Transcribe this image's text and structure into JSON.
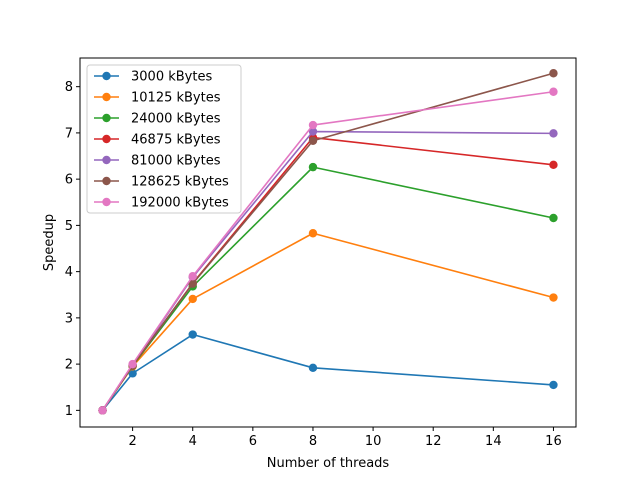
{
  "chart_data": {
    "type": "line",
    "xlabel": "Number of threads",
    "ylabel": "Speedup",
    "xlim": [
      0.25,
      16.75
    ],
    "ylim": [
      0.64,
      8.62
    ],
    "xticks": [
      2,
      4,
      6,
      8,
      10,
      12,
      14,
      16
    ],
    "yticks": [
      1,
      2,
      3,
      4,
      5,
      6,
      7,
      8
    ],
    "grid": false,
    "legend_position": "upper-left",
    "x": [
      1,
      2,
      4,
      8,
      16
    ],
    "series": [
      {
        "name": "3000 kBytes",
        "color": "#1f77b4",
        "values": [
          1.0,
          1.8,
          2.64,
          1.92,
          1.55
        ]
      },
      {
        "name": "10125 kBytes",
        "color": "#ff7f0e",
        "values": [
          1.0,
          1.95,
          3.41,
          4.83,
          3.44
        ]
      },
      {
        "name": "24000 kBytes",
        "color": "#2ca02c",
        "values": [
          1.0,
          1.96,
          3.68,
          6.26,
          5.16
        ]
      },
      {
        "name": "46875 kBytes",
        "color": "#d62728",
        "values": [
          1.0,
          1.97,
          3.75,
          6.9,
          6.31
        ]
      },
      {
        "name": "81000 kBytes",
        "color": "#9467bd",
        "values": [
          1.0,
          1.98,
          3.88,
          7.03,
          6.99
        ]
      },
      {
        "name": "128625 kBytes",
        "color": "#8c564b",
        "values": [
          1.0,
          1.98,
          3.74,
          6.83,
          8.29
        ]
      },
      {
        "name": "192000 kBytes",
        "color": "#e377c2",
        "values": [
          1.0,
          2.0,
          3.9,
          7.17,
          7.89
        ]
      }
    ]
  }
}
